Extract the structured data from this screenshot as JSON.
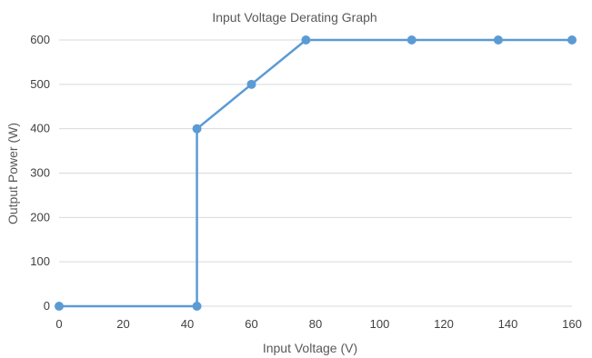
{
  "chart_data": {
    "type": "line",
    "title": "Input Voltage Derating Graph",
    "xlabel": "Input Voltage (V)",
    "ylabel": "Output Power (W)",
    "xlim": [
      0,
      160
    ],
    "ylim": [
      0,
      600
    ],
    "x_ticks": [
      "0",
      "20",
      "40",
      "60",
      "80",
      "100",
      "120",
      "140",
      "160"
    ],
    "y_ticks": [
      "0",
      "100",
      "200",
      "300",
      "400",
      "500",
      "600"
    ],
    "grid": "horizontal",
    "legend": "none",
    "series": [
      {
        "color": "#5b9bd5",
        "points": [
          {
            "x": 0,
            "y": 0
          },
          {
            "x": 43,
            "y": 0
          },
          {
            "x": 43,
            "y": 400
          },
          {
            "x": 60,
            "y": 500
          },
          {
            "x": 77,
            "y": 600
          },
          {
            "x": 110,
            "y": 600
          },
          {
            "x": 137,
            "y": 600
          },
          {
            "x": 160,
            "y": 600
          }
        ]
      }
    ]
  }
}
